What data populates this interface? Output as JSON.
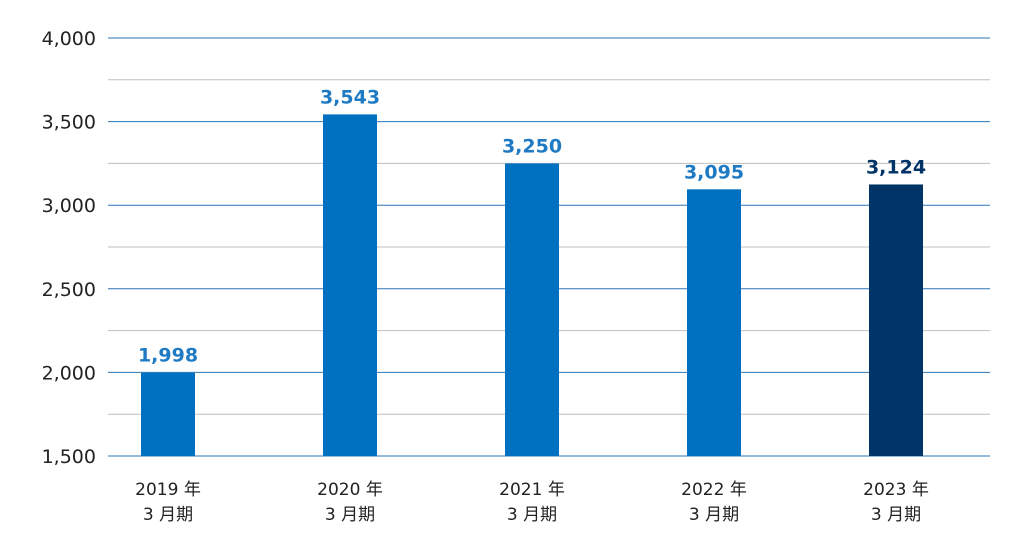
{
  "chart_data": {
    "type": "bar",
    "categories": [
      [
        "2019 年",
        "3 月期"
      ],
      [
        "2020 年",
        "3 月期"
      ],
      [
        "2021 年",
        "3 月期"
      ],
      [
        "2022 年",
        "3 月期"
      ],
      [
        "2023 年",
        "3 月期"
      ]
    ],
    "values": [
      1998,
      3543,
      3250,
      3095,
      3124
    ],
    "value_labels": [
      "1,998",
      "3,543",
      "3,250",
      "3,095",
      "3,124"
    ],
    "bar_colors": [
      "#0070c0",
      "#0070c0",
      "#0070c0",
      "#0070c0",
      "#003366"
    ],
    "label_colors": [
      "#1f7ac4",
      "#1f7ac4",
      "#1f7ac4",
      "#1f7ac4",
      "#003366"
    ],
    "ylim": [
      1500,
      4000
    ],
    "yticks": [
      1500,
      2000,
      2500,
      3000,
      3500,
      4000
    ],
    "ytick_labels": [
      "1,500",
      "2,000",
      "2,500",
      "3,000",
      "3,500",
      "4,000"
    ],
    "minor_gridlines": [
      1750,
      2250,
      2750,
      3250,
      3750
    ],
    "grid": true,
    "major_grid_color": "#2e75b6",
    "minor_grid_color": "#bfbfbf",
    "title": "",
    "xlabel": "",
    "ylabel": ""
  }
}
